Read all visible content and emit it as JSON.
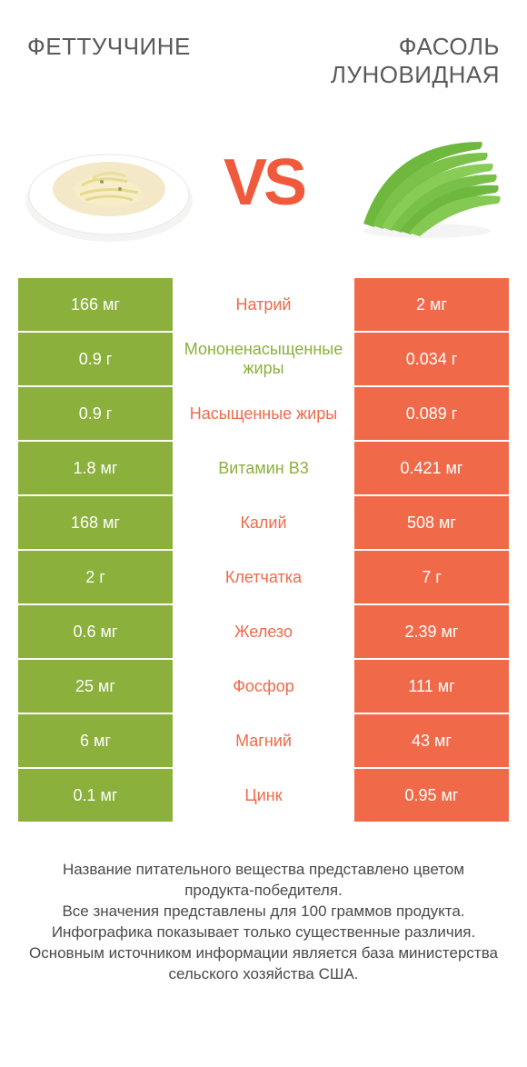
{
  "colors": {
    "left_bg": "#8bb03c",
    "right_bg": "#f06a4a",
    "mid_left": "#8bb03c",
    "mid_right": "#f06a4a",
    "vs": "#f05a3c",
    "title": "#5a5a5a",
    "foot": "#4a4a4a"
  },
  "titles": {
    "left": "Феттуччине",
    "right": "Фасоль луновидная"
  },
  "vs": "VS",
  "rows": [
    {
      "left": "166 мг",
      "label": "Натрий",
      "winner": "right",
      "right": "2 мг"
    },
    {
      "left": "0.9 г",
      "label": "Мононенасыщенные жиры",
      "winner": "left",
      "right": "0.034 г"
    },
    {
      "left": "0.9 г",
      "label": "Насыщенные жиры",
      "winner": "right",
      "right": "0.089 г"
    },
    {
      "left": "1.8 мг",
      "label": "Витамин B3",
      "winner": "left",
      "right": "0.421 мг"
    },
    {
      "left": "168 мг",
      "label": "Калий",
      "winner": "right",
      "right": "508 мг"
    },
    {
      "left": "2 г",
      "label": "Клетчатка",
      "winner": "right",
      "right": "7 г"
    },
    {
      "left": "0.6 мг",
      "label": "Железо",
      "winner": "right",
      "right": "2.39 мг"
    },
    {
      "left": "25 мг",
      "label": "Фосфор",
      "winner": "right",
      "right": "111 мг"
    },
    {
      "left": "6 мг",
      "label": "Магний",
      "winner": "right",
      "right": "43 мг"
    },
    {
      "left": "0.1 мг",
      "label": "Цинк",
      "winner": "right",
      "right": "0.95 мг"
    }
  ],
  "footnote": "Название питательного вещества представлено цветом продукта-победителя.\nВсе значения представлены для 100 граммов продукта.\nИнфографика показывает только существенные различия.\nОсновным источником информации является база министерства сельского хозяйства США."
}
